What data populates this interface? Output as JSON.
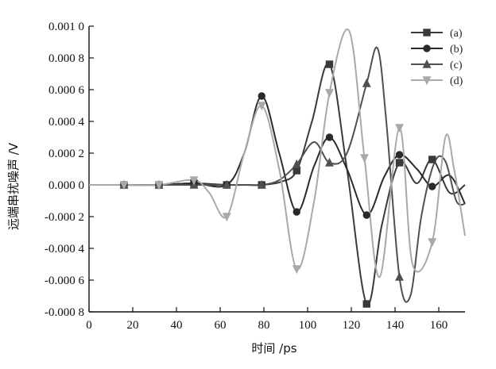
{
  "chart_data": {
    "type": "line",
    "xlabel": "时间 /ps",
    "ylabel": "远端串扰噪声 /V",
    "xlim": [
      0,
      172
    ],
    "ylim": [
      -0.0008,
      0.001
    ],
    "x_ticks": [
      0,
      20,
      40,
      60,
      80,
      100,
      120,
      140,
      160
    ],
    "x_tick_labels": [
      "0",
      "20",
      "40",
      "60",
      "80",
      "100",
      "120",
      "140",
      "160"
    ],
    "y_ticks": [
      0.001,
      0.0008,
      0.0006,
      0.0004,
      0.0002,
      0,
      -0.0002,
      -0.0004,
      -0.0006,
      -0.0008
    ],
    "y_tick_labels": [
      "0.001 0",
      "0.000 8",
      "0.000 6",
      "0.000 4",
      "0.000 2",
      "0.000 0",
      "-0.000 2",
      "-0.000 4",
      "-0.000 6",
      "-0.000 8"
    ],
    "grid": false,
    "legend_position": "top-right",
    "series": [
      {
        "name": "(a)",
        "marker": "square",
        "color": "#3a3a3a",
        "x": [
          0,
          16,
          32,
          48,
          63,
          72,
          79,
          88,
          95,
          102,
          110,
          118,
          127,
          134,
          142,
          150,
          157,
          165,
          172
        ],
        "y": [
          0,
          0,
          0,
          1e-05,
          0,
          0,
          0,
          2e-05,
          9e-05,
          0.0004,
          0.00076,
          0.0001,
          -0.00075,
          -0.00025,
          0.00014,
          1e-05,
          0.00016,
          -5e-05,
          0
        ]
      },
      {
        "name": "(b)",
        "marker": "circle",
        "color": "#2a2a2a",
        "x": [
          0,
          16,
          32,
          48,
          63,
          71,
          79,
          87,
          95,
          103,
          110,
          118,
          127,
          135,
          142,
          150,
          157,
          165,
          172
        ],
        "y": [
          0,
          0,
          0,
          1e-05,
          0,
          0.0002,
          0.00056,
          0.0002,
          -0.00017,
          0.00012,
          0.0003,
          0.0001,
          -0.00019,
          5e-05,
          0.00019,
          0.0001,
          -1e-05,
          6e-05,
          -0.00012
        ]
      },
      {
        "name": "(c)",
        "marker": "triangle-up",
        "color": "#505050",
        "x": [
          0,
          16,
          32,
          48,
          63,
          72,
          79,
          87,
          95,
          103,
          110,
          118,
          127,
          132,
          136,
          142,
          147,
          152,
          158,
          163,
          168,
          172
        ],
        "y": [
          0,
          0,
          0,
          0,
          0,
          0,
          0,
          3e-05,
          0.00013,
          0.00027,
          0.00014,
          0.0002,
          0.00064,
          0.00086,
          0.0004,
          -0.00058,
          -0.0007,
          -0.0002,
          0.00014,
          0.00015,
          -0.0001,
          -0.00012
        ]
      },
      {
        "name": "(d)",
        "marker": "triangle-down",
        "color": "#a9a9a9",
        "x": [
          0,
          16,
          32,
          48,
          55,
          63,
          71,
          79,
          87,
          95,
          103,
          110,
          119,
          126,
          133,
          142,
          148,
          157,
          163,
          167,
          172
        ],
        "y": [
          0,
          0,
          0,
          3e-05,
          -5e-05,
          -0.0002,
          0.0002,
          0.0005,
          0.0001,
          -0.00053,
          -0.0001,
          0.00058,
          0.00097,
          0.00017,
          -0.00058,
          0.00036,
          -0.0005,
          -0.00036,
          0.0003,
          0.0001,
          -0.00032
        ]
      }
    ]
  }
}
